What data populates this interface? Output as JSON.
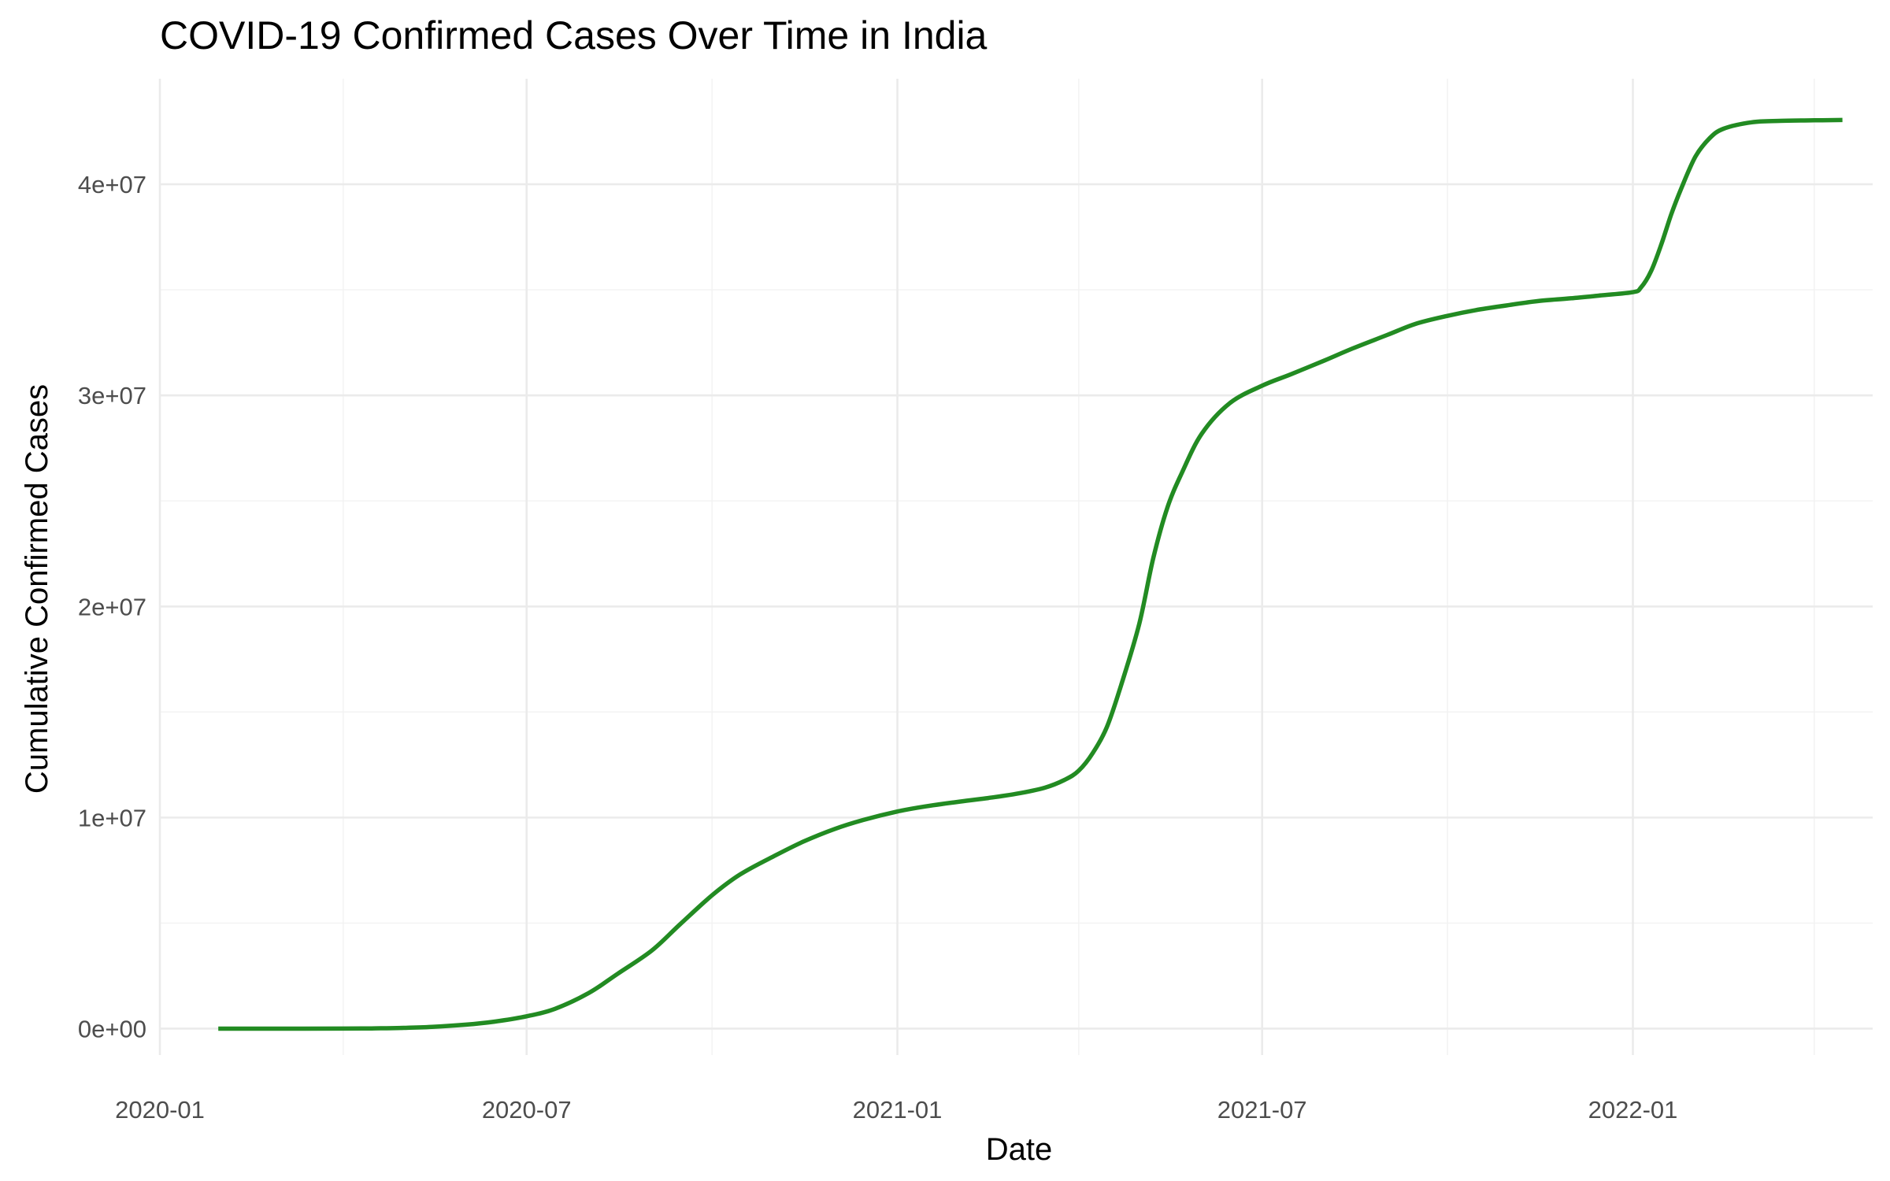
{
  "chart_data": {
    "type": "line",
    "title": "COVID-19 Confirmed Cases Over Time in India",
    "xlabel": "Date",
    "ylabel": "Cumulative Confirmed Cases",
    "x_ticks": [
      "2020-01",
      "2020-07",
      "2021-01",
      "2021-07",
      "2022-01"
    ],
    "y_ticks": [
      "0e+00",
      "1e+07",
      "2e+07",
      "3e+07",
      "4e+07"
    ],
    "y_tick_values": [
      0,
      10000000,
      20000000,
      30000000,
      40000000
    ],
    "xlim": [
      "2020-01-01",
      "2022-04-30"
    ],
    "ylim": [
      -1250000,
      45000000
    ],
    "grid": true,
    "line_color": "#228B22",
    "series": [
      {
        "x": [
          "2020-01-30",
          "2020-03-01",
          "2020-04-01",
          "2020-04-15",
          "2020-05-01",
          "2020-05-15",
          "2020-06-01",
          "2020-06-15",
          "2020-07-01",
          "2020-07-15",
          "2020-08-01",
          "2020-08-15",
          "2020-09-01",
          "2020-09-15",
          "2020-10-01",
          "2020-10-15",
          "2020-11-01",
          "2020-11-15",
          "2020-12-01",
          "2020-12-15",
          "2021-01-01",
          "2021-01-15",
          "2021-02-01",
          "2021-02-15",
          "2021-03-01",
          "2021-03-15",
          "2021-03-25",
          "2021-04-01",
          "2021-04-08",
          "2021-04-15",
          "2021-04-22",
          "2021-05-01",
          "2021-05-08",
          "2021-05-15",
          "2021-05-22",
          "2021-06-01",
          "2021-06-15",
          "2021-07-01",
          "2021-07-15",
          "2021-08-01",
          "2021-08-15",
          "2021-09-01",
          "2021-09-15",
          "2021-10-01",
          "2021-10-15",
          "2021-11-01",
          "2021-11-15",
          "2021-12-01",
          "2021-12-15",
          "2022-01-01",
          "2022-01-05",
          "2022-01-10",
          "2022-01-15",
          "2022-01-20",
          "2022-01-25",
          "2022-02-01",
          "2022-02-08",
          "2022-02-15",
          "2022-03-01",
          "2022-03-15",
          "2022-04-01",
          "2022-04-15"
        ],
        "values": [
          1,
          3,
          1998,
          12380,
          35043,
          81970,
          190535,
          332424,
          585481,
          936181,
          1695988,
          2589682,
          3691166,
          4930236,
          6312584,
          7307097,
          8184082,
          8845127,
          9462809,
          9884100,
          10286709,
          10527683,
          10757610,
          10925710,
          11124527,
          11409831,
          11787534,
          12221665,
          13060542,
          14291917,
          16263695,
          19164969,
          22296414,
          24684077,
          26289290,
          28175044,
          29633105,
          30458251,
          30987880,
          31655824,
          32225513,
          32857937,
          33381728,
          33766707,
          34037592,
          34285814,
          34466598,
          34596776,
          34726049,
          34889132,
          35109286,
          35875790,
          37122164,
          38566027,
          39799202,
          41302440,
          42172014,
          42631421,
          42938599,
          43004005,
          43029044,
          43045527
        ]
      }
    ]
  }
}
